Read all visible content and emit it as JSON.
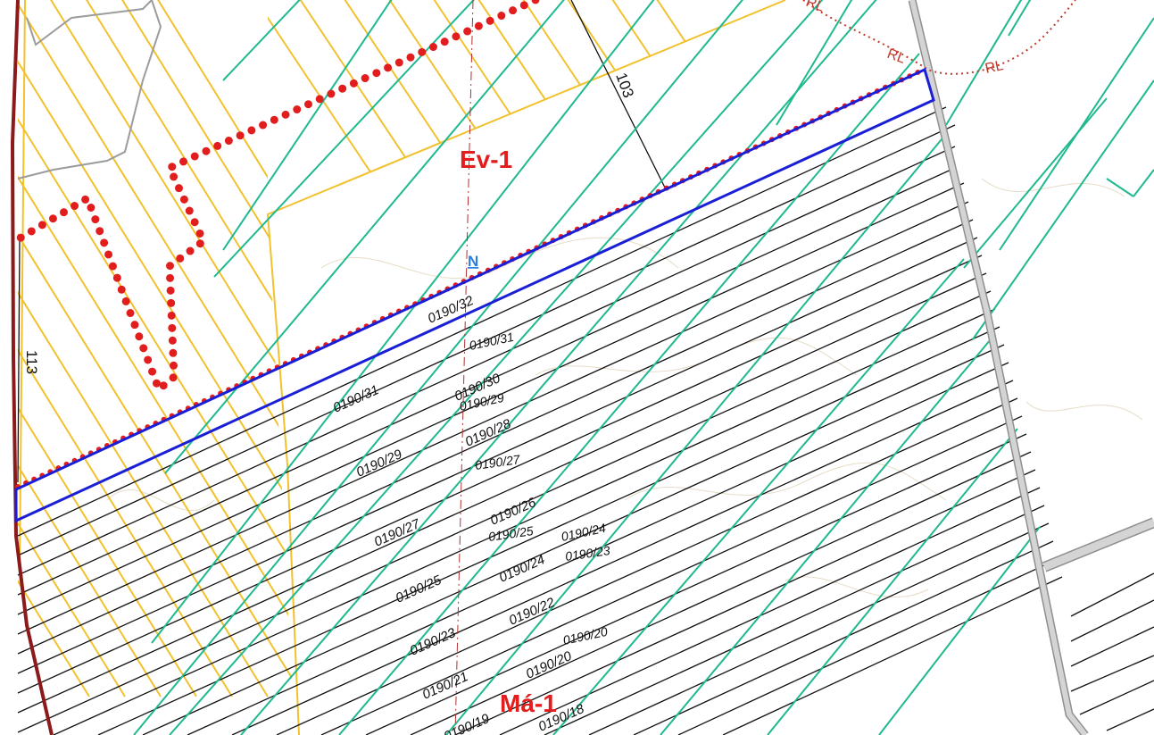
{
  "map": {
    "zones": [
      "Ev-1",
      "Má-1"
    ],
    "north_marker": "N",
    "road_numbers": [
      "103",
      "113"
    ],
    "boundary_labels": [
      "RL",
      "RL",
      "RL"
    ],
    "parcels": [
      "0190/32",
      "0190/31",
      "0190/31",
      "0190/30",
      "0190/29",
      "0190/28",
      "0190/29",
      "0190/27",
      "0190/27",
      "0190/26",
      "0190/25",
      "0190/24",
      "0190/24",
      "0190/23",
      "0190/25",
      "0190/22",
      "0190/23",
      "0190/20",
      "0190/20",
      "0190/21",
      "0190/18",
      "0190/19"
    ],
    "colors": {
      "parcel_line": "#111111",
      "hatch_green": "#1fb98f",
      "hatch_yellow": "#f2c12e",
      "plot_outline": "#1a1fd6",
      "dotted_boundary": "#e11d1d",
      "road": "#b5b5b5",
      "zone_text": "#e11d1d",
      "north_text": "#2a7de1"
    }
  }
}
